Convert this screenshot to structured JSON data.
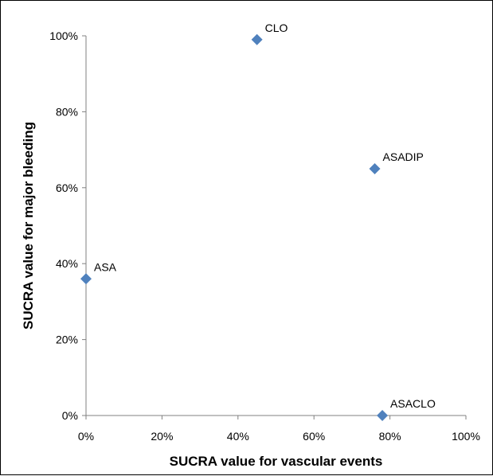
{
  "chart_data": {
    "type": "scatter",
    "title": "",
    "xlabel": "SUCRA value for vascular events",
    "ylabel": "SUCRA value for major bleeding",
    "xlim": [
      0,
      100
    ],
    "ylim": [
      0,
      100
    ],
    "x_ticks": [
      "0%",
      "20%",
      "40%",
      "60%",
      "80%",
      "100%"
    ],
    "y_ticks": [
      "0%",
      "20%",
      "40%",
      "60%",
      "80%",
      "100%"
    ],
    "grid": false,
    "legend": false,
    "marker": "diamond",
    "marker_color": "#4f81bd",
    "points": [
      {
        "label": "CLO",
        "x": 45,
        "y": 99
      },
      {
        "label": "ASADIP",
        "x": 76,
        "y": 65
      },
      {
        "label": "ASA",
        "x": 0,
        "y": 36
      },
      {
        "label": "ASACLO",
        "x": 78,
        "y": 0
      }
    ]
  }
}
